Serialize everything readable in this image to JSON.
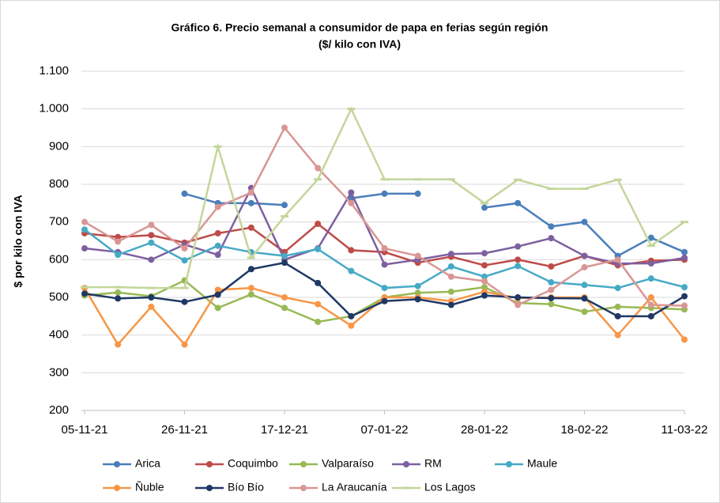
{
  "chart_data": {
    "type": "line",
    "title": "Gráfico 6. Precio semanal a consumidor de papa en ferias según región",
    "subtitle": "($/ kilo con IVA)",
    "y_label": "$ por kilo con IVA",
    "categories": [
      "05-11-21",
      null,
      null,
      "26-11-21",
      null,
      null,
      "17-12-21",
      null,
      null,
      "07-01-22",
      null,
      null,
      "28-01-22",
      null,
      null,
      "18-02-22",
      null,
      null,
      "11-03-22"
    ],
    "ylim": [
      200,
      1100
    ],
    "yticks": [
      200,
      300,
      400,
      500,
      600,
      700,
      800,
      900,
      {
        "value": 1000,
        "label": "1.000"
      },
      {
        "value": 1100,
        "label": "1.100"
      }
    ],
    "grid": true,
    "legend": "bottom",
    "series": [
      {
        "name": "Arica",
        "color": "#4a7ebb",
        "values": [
          null,
          null,
          null,
          775,
          750,
          750,
          745,
          null,
          763,
          775,
          775,
          null,
          738,
          750,
          688,
          700,
          610,
          658,
          620
        ]
      },
      {
        "name": "Coquimbo",
        "color": "#be4b48",
        "values": [
          670,
          660,
          665,
          645,
          670,
          685,
          620,
          695,
          625,
          620,
          592,
          608,
          585,
          600,
          582,
          610,
          585,
          597,
          600
        ]
      },
      {
        "name": "Valparaíso",
        "color": "#98b954",
        "values": [
          505,
          513,
          503,
          545,
          472,
          508,
          472,
          435,
          450,
          500,
          512,
          515,
          527,
          485,
          482,
          462,
          475,
          472,
          468
        ]
      },
      {
        "name": "RM",
        "color": "#7d60a0",
        "values": [
          630,
          620,
          600,
          640,
          613,
          790,
          600,
          630,
          778,
          587,
          600,
          615,
          617,
          635,
          657,
          610,
          590,
          590,
          605
        ]
      },
      {
        "name": "Maule",
        "color": "#46aac5",
        "values": [
          680,
          613,
          645,
          598,
          637,
          620,
          610,
          628,
          570,
          525,
          530,
          582,
          555,
          583,
          540,
          533,
          525,
          550,
          527
        ]
      },
      {
        "name": "Ñuble",
        "color": "#f79646",
        "values": [
          525,
          375,
          475,
          375,
          520,
          525,
          500,
          482,
          425,
          500,
          500,
          490,
          515,
          498,
          500,
          500,
          400,
          500,
          388
        ]
      },
      {
        "name": "Bío Bío",
        "color": "#1f3864",
        "values": [
          510,
          497,
          500,
          488,
          507,
          575,
          592,
          538,
          450,
          490,
          495,
          480,
          505,
          500,
          498,
          497,
          450,
          450,
          503
        ]
      },
      {
        "name": "La Araucanía",
        "color": "#d99694",
        "values": [
          700,
          648,
          692,
          630,
          740,
          778,
          950,
          843,
          750,
          630,
          610,
          555,
          543,
          480,
          520,
          580,
          600,
          480,
          478
        ]
      },
      {
        "name": "Los Lagos",
        "color": "#c3d69b",
        "marker": "dash",
        "values": [
          527,
          527,
          525,
          525,
          900,
          605,
          715,
          813,
          1000,
          813,
          813,
          813,
          750,
          812,
          788,
          788,
          812,
          637,
          700
        ]
      }
    ]
  }
}
